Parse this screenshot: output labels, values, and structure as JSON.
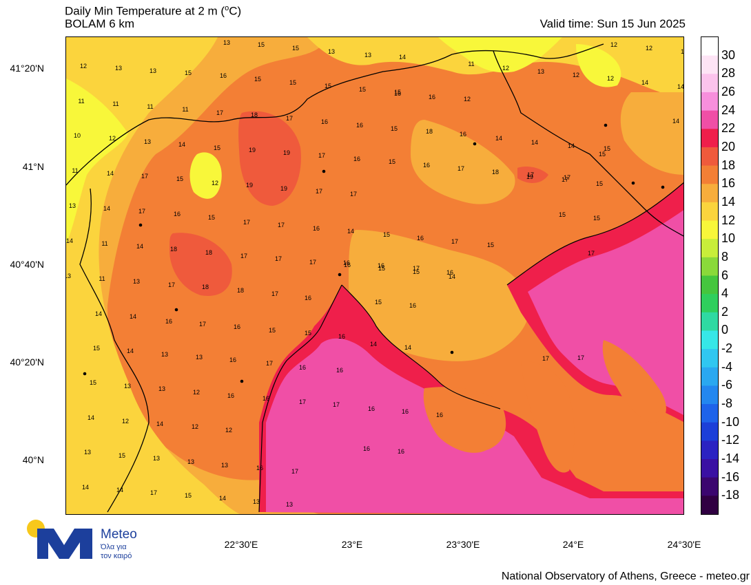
{
  "header": {
    "title": "Daily Min Temperature at 2 m (",
    "title_unit": "o",
    "title_unit_tail": "C)",
    "model": "BOLAM 6 km",
    "valid_time": "Valid time: Sun 15 Jun 2025"
  },
  "footer": {
    "credit": "National Observatory of Athens, Greece - meteo.gr"
  },
  "logo": {
    "wordmark": "Meteo",
    "tagline_1": "Όλα για",
    "tagline_2": "τον καιρό"
  },
  "axes": {
    "lat_labels": [
      "41°20'N",
      "41°N",
      "40°40'N",
      "40°20'N",
      "40°N"
    ],
    "lon_labels": [
      "22°30'E",
      "23°E",
      "23°30'E",
      "24°E",
      "24°30'E"
    ]
  },
  "colorbar": {
    "labels": [
      "30",
      "28",
      "26",
      "24",
      "22",
      "20",
      "18",
      "16",
      "14",
      "12",
      "10",
      "8",
      "6",
      "4",
      "2",
      "0",
      "-2",
      "-4",
      "-6",
      "-8",
      "-10",
      "-12",
      "-14",
      "-16",
      "-18"
    ],
    "colors": [
      "#ffffff",
      "#fde4f5",
      "#fbc3ec",
      "#f78fdc",
      "#f04fa6",
      "#ef1f4b",
      "#ef5a3c",
      "#f37f35",
      "#f7ad3c",
      "#fbd43d",
      "#f8f73a",
      "#c8ee3a",
      "#8ad93a",
      "#45c63e",
      "#2fcf5d",
      "#2fd9a2",
      "#36e7e7",
      "#30c7f0",
      "#2aa8f0",
      "#2387ef",
      "#1e63ea",
      "#1c3fd8",
      "#2b22c2",
      "#3a10a3",
      "#3b066f",
      "#300042"
    ]
  },
  "map_labels": [
    {
      "t": "13"
    },
    {
      "t": "15"
    },
    {
      "t": "15"
    },
    {
      "t": "13"
    },
    {
      "t": "13"
    },
    {
      "t": "14"
    },
    {
      "t": "12"
    },
    {
      "t": "12"
    },
    {
      "t": "12"
    },
    {
      "t": "12"
    },
    {
      "t": "13"
    },
    {
      "t": "13"
    },
    {
      "t": "15"
    },
    {
      "t": "16"
    },
    {
      "t": "15"
    },
    {
      "t": "15"
    },
    {
      "t": "15"
    },
    {
      "t": "15"
    },
    {
      "t": "15"
    },
    {
      "t": "11"
    },
    {
      "t": "12"
    },
    {
      "t": "13"
    },
    {
      "t": "12"
    },
    {
      "t": "12"
    },
    {
      "t": "14"
    },
    {
      "t": "14"
    },
    {
      "t": "11"
    },
    {
      "t": "11"
    },
    {
      "t": "11"
    },
    {
      "t": "11"
    },
    {
      "t": "16"
    },
    {
      "t": "16"
    },
    {
      "t": "12"
    },
    {
      "t": "17"
    },
    {
      "t": "18"
    },
    {
      "t": "17"
    },
    {
      "t": "16"
    },
    {
      "t": "16"
    },
    {
      "t": "15"
    },
    {
      "t": "18"
    },
    {
      "t": "16"
    },
    {
      "t": "14"
    },
    {
      "t": "14"
    },
    {
      "t": "14"
    },
    {
      "t": "15"
    },
    {
      "t": "14"
    },
    {
      "t": "10"
    },
    {
      "t": "12"
    },
    {
      "t": "13"
    },
    {
      "t": "14"
    },
    {
      "t": "15"
    },
    {
      "t": "19"
    },
    {
      "t": "19"
    },
    {
      "t": "17"
    },
    {
      "t": "16"
    },
    {
      "t": "15"
    },
    {
      "t": "16"
    },
    {
      "t": "17"
    },
    {
      "t": "18"
    },
    {
      "t": "17"
    },
    {
      "t": "17"
    },
    {
      "t": "15"
    },
    {
      "t": "11"
    },
    {
      "t": "14"
    },
    {
      "t": "17"
    },
    {
      "t": "15"
    },
    {
      "t": "12"
    },
    {
      "t": "19"
    },
    {
      "t": "19"
    },
    {
      "t": "17"
    },
    {
      "t": "17"
    },
    {
      "t": "19"
    },
    {
      "t": "17"
    },
    {
      "t": "15"
    },
    {
      "t": "13"
    },
    {
      "t": "14"
    },
    {
      "t": "17"
    },
    {
      "t": "16"
    },
    {
      "t": "15"
    },
    {
      "t": "17"
    },
    {
      "t": "17"
    },
    {
      "t": "16"
    },
    {
      "t": "14"
    },
    {
      "t": "15"
    },
    {
      "t": "16"
    },
    {
      "t": "17"
    },
    {
      "t": "15"
    },
    {
      "t": "15"
    },
    {
      "t": "15"
    },
    {
      "t": "14"
    },
    {
      "t": "11"
    },
    {
      "t": "14"
    },
    {
      "t": "18"
    },
    {
      "t": "18"
    },
    {
      "t": "17"
    },
    {
      "t": "17"
    },
    {
      "t": "17"
    },
    {
      "t": "16"
    },
    {
      "t": "15"
    },
    {
      "t": "15"
    },
    {
      "t": "14"
    },
    {
      "t": "17"
    },
    {
      "t": "13"
    },
    {
      "t": "11"
    },
    {
      "t": "13"
    },
    {
      "t": "17"
    },
    {
      "t": "18"
    },
    {
      "t": "18"
    },
    {
      "t": "17"
    },
    {
      "t": "16"
    },
    {
      "t": "16"
    },
    {
      "t": "16"
    },
    {
      "t": "17"
    },
    {
      "t": "16"
    },
    {
      "t": "14"
    },
    {
      "t": "14"
    },
    {
      "t": "16"
    },
    {
      "t": "17"
    },
    {
      "t": "16"
    },
    {
      "t": "15"
    },
    {
      "t": "15"
    },
    {
      "t": "16"
    },
    {
      "t": "15"
    },
    {
      "t": "16"
    },
    {
      "t": "15"
    },
    {
      "t": "14"
    },
    {
      "t": "13"
    },
    {
      "t": "13"
    },
    {
      "t": "16"
    },
    {
      "t": "17"
    },
    {
      "t": "16"
    },
    {
      "t": "16"
    },
    {
      "t": "14"
    },
    {
      "t": "14"
    },
    {
      "t": "17"
    },
    {
      "t": "17"
    },
    {
      "t": "15"
    },
    {
      "t": "13"
    },
    {
      "t": "13"
    },
    {
      "t": "12"
    },
    {
      "t": "16"
    },
    {
      "t": "16"
    },
    {
      "t": "17"
    },
    {
      "t": "17"
    },
    {
      "t": "16"
    },
    {
      "t": "16"
    },
    {
      "t": "16"
    },
    {
      "t": "14"
    },
    {
      "t": "12"
    },
    {
      "t": "14"
    },
    {
      "t": "12"
    },
    {
      "t": "12"
    },
    {
      "t": "16"
    },
    {
      "t": "16"
    },
    {
      "t": "13"
    },
    {
      "t": "15"
    },
    {
      "t": "13"
    },
    {
      "t": "13"
    },
    {
      "t": "13"
    },
    {
      "t": "16"
    },
    {
      "t": "17"
    },
    {
      "t": "14"
    },
    {
      "t": "14"
    },
    {
      "t": "17"
    },
    {
      "t": "15"
    },
    {
      "t": "14"
    },
    {
      "t": "13"
    },
    {
      "t": "13"
    }
  ]
}
